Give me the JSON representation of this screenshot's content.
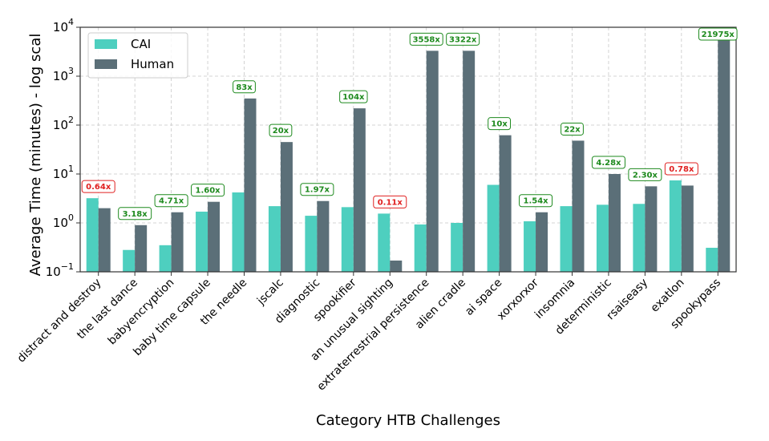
{
  "chart_data": {
    "type": "bar",
    "scale": "log",
    "xlabel": "Category HTB Challenges",
    "ylabel": "Average Time (minutes) - log scal",
    "ylim": [
      0.1,
      10000
    ],
    "yticks": [
      {
        "value": 0.1,
        "base": "10",
        "exp": "−1"
      },
      {
        "value": 1,
        "base": "10",
        "exp": "0"
      },
      {
        "value": 10,
        "base": "10",
        "exp": "1"
      },
      {
        "value": 100,
        "base": "10",
        "exp": "2"
      },
      {
        "value": 1000,
        "base": "10",
        "exp": "3"
      },
      {
        "value": 10000,
        "base": "10",
        "exp": "4"
      }
    ],
    "grid": true,
    "legend_position": "top-left",
    "colors": {
      "CAI": "#4ecfbf",
      "Human": "#5b6f78",
      "ratio_good": "#1e8a1e",
      "ratio_bad": "#e02020"
    },
    "categories": [
      "distract and destroy",
      "the last dance",
      "babyencryption",
      "baby time capsule",
      "the needle",
      "jscalc",
      "diagnostic",
      "spookifier",
      "an unusual sighting",
      "extraterrestrial persistence",
      "alien cradle",
      "ai space",
      "xorxorxor",
      "insomnia",
      "deterministic",
      "rsaiseasy",
      "exatlon",
      "spookypass"
    ],
    "series": [
      {
        "name": "CAI",
        "values": [
          3.2,
          0.28,
          0.35,
          1.7,
          4.2,
          2.2,
          1.4,
          2.1,
          1.55,
          0.93,
          1.0,
          6.0,
          1.08,
          2.2,
          2.35,
          2.45,
          7.4,
          0.31
        ]
      },
      {
        "name": "Human",
        "values": [
          2.0,
          0.9,
          1.65,
          2.7,
          350,
          45,
          2.8,
          220,
          0.17,
          3300,
          3300,
          62,
          1.65,
          48,
          10,
          5.6,
          5.8,
          6700
        ]
      }
    ],
    "ratio_labels": [
      "0.64x",
      "3.18x",
      "4.71x",
      "1.60x",
      "83x",
      "20x",
      "1.97x",
      "104x",
      "0.11x",
      "3558x",
      "3322x",
      "10x",
      "1.54x",
      "22x",
      "4.28x",
      "2.30x",
      "0.78x",
      "21975x"
    ],
    "ratio_good": [
      false,
      true,
      true,
      true,
      true,
      true,
      true,
      true,
      false,
      true,
      true,
      true,
      true,
      true,
      true,
      true,
      false,
      true
    ]
  }
}
